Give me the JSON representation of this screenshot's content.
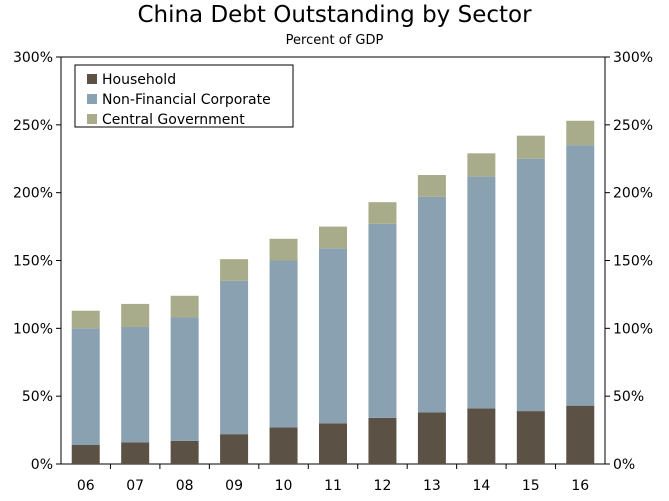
{
  "chart_data": {
    "type": "bar",
    "stacked": true,
    "title": "China Debt Outstanding by Sector",
    "subtitle": "Percent of GDP",
    "categories": [
      "06",
      "07",
      "08",
      "09",
      "10",
      "11",
      "12",
      "13",
      "14",
      "15",
      "16"
    ],
    "series": [
      {
        "name": "Household",
        "color": "#5c5145",
        "values": [
          14,
          16,
          17,
          22,
          27,
          30,
          34,
          38,
          41,
          39,
          43
        ]
      },
      {
        "name": "Non-Financial Corporate",
        "color": "#8aa1b1",
        "values": [
          86,
          85,
          91,
          113,
          123,
          129,
          143,
          159,
          171,
          186,
          192
        ]
      },
      {
        "name": "Central Government",
        "color": "#a9ac8a",
        "values": [
          13,
          17,
          16,
          16,
          16,
          16,
          16,
          16,
          17,
          17,
          18
        ]
      }
    ],
    "ylim": [
      0,
      300
    ],
    "yticks": [
      "0%",
      "50%",
      "100%",
      "150%",
      "200%",
      "250%",
      "300%"
    ],
    "legend_position": "top-left"
  }
}
